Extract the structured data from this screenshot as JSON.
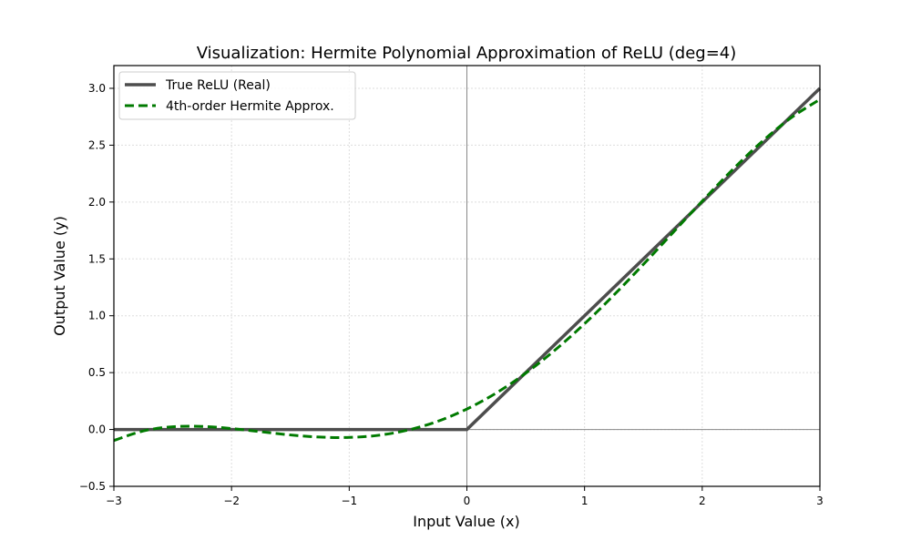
{
  "chart_data": {
    "type": "line",
    "title": "Visualization: Hermite Polynomial Approximation of ReLU (deg=4)",
    "xlabel": "Input Value (x)",
    "ylabel": "Output Value (y)",
    "xlim": [
      -3,
      3
    ],
    "ylim": [
      -0.5,
      3.2
    ],
    "xticks": [
      -3,
      -2,
      -1,
      0,
      1,
      2,
      3
    ],
    "xtick_labels": [
      "−3",
      "−2",
      "−1",
      "0",
      "1",
      "2",
      "3"
    ],
    "yticks": [
      -0.5,
      0.0,
      0.5,
      1.0,
      1.5,
      2.0,
      2.5,
      3.0
    ],
    "ytick_labels": [
      "−0.5",
      "0.0",
      "0.5",
      "1.0",
      "1.5",
      "2.0",
      "2.5",
      "3.0"
    ],
    "grid": true,
    "legend_placement": "upper-left",
    "series": [
      {
        "name": "True ReLU (Real)",
        "color": "#4d4d4d",
        "style": "solid",
        "x": [
          -3,
          0,
          3
        ],
        "y": [
          0,
          0,
          3
        ]
      },
      {
        "name": "4th-order Hermite Approx.",
        "color": "#007a00",
        "style": "dashed",
        "x": [
          -3,
          -2.75,
          -2.5,
          -2.25,
          -2,
          -1.75,
          -1.5,
          -1.25,
          -1,
          -0.75,
          -0.5,
          -0.25,
          0,
          0.25,
          0.5,
          0.75,
          1,
          1.25,
          1.5,
          1.75,
          2,
          2.25,
          2.5,
          2.75,
          3
        ],
        "y": [
          -0.097,
          -0.013,
          0.024,
          0.027,
          0.008,
          -0.02,
          -0.048,
          -0.067,
          -0.07,
          -0.051,
          -0.005,
          0.071,
          0.18,
          0.321,
          0.495,
          0.699,
          0.93,
          1.183,
          1.452,
          1.73,
          2.008,
          2.277,
          2.524,
          2.737,
          2.903
        ]
      }
    ]
  }
}
